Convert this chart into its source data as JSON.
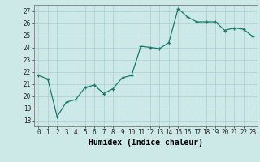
{
  "x": [
    0,
    1,
    2,
    3,
    4,
    5,
    6,
    7,
    8,
    9,
    10,
    11,
    12,
    13,
    14,
    15,
    16,
    17,
    18,
    19,
    20,
    21,
    22,
    23
  ],
  "y": [
    21.7,
    21.4,
    18.3,
    19.5,
    19.7,
    20.7,
    20.9,
    20.2,
    20.6,
    21.5,
    21.7,
    24.1,
    24.0,
    23.9,
    24.4,
    27.2,
    26.5,
    26.1,
    26.1,
    26.1,
    25.4,
    25.6,
    25.5,
    24.9
  ],
  "xlabel": "Humidex (Indice chaleur)",
  "ylim": [
    17.5,
    27.5
  ],
  "xlim": [
    -0.5,
    23.5
  ],
  "yticks": [
    18,
    19,
    20,
    21,
    22,
    23,
    24,
    25,
    26,
    27
  ],
  "xticks": [
    0,
    1,
    2,
    3,
    4,
    5,
    6,
    7,
    8,
    9,
    10,
    11,
    12,
    13,
    14,
    15,
    16,
    17,
    18,
    19,
    20,
    21,
    22,
    23
  ],
  "bg_color": "#cce9e7",
  "line_color": "#1a7a6e",
  "grid_color": "#aacfcc",
  "tick_fontsize": 5.5,
  "xlabel_fontsize": 7.0
}
